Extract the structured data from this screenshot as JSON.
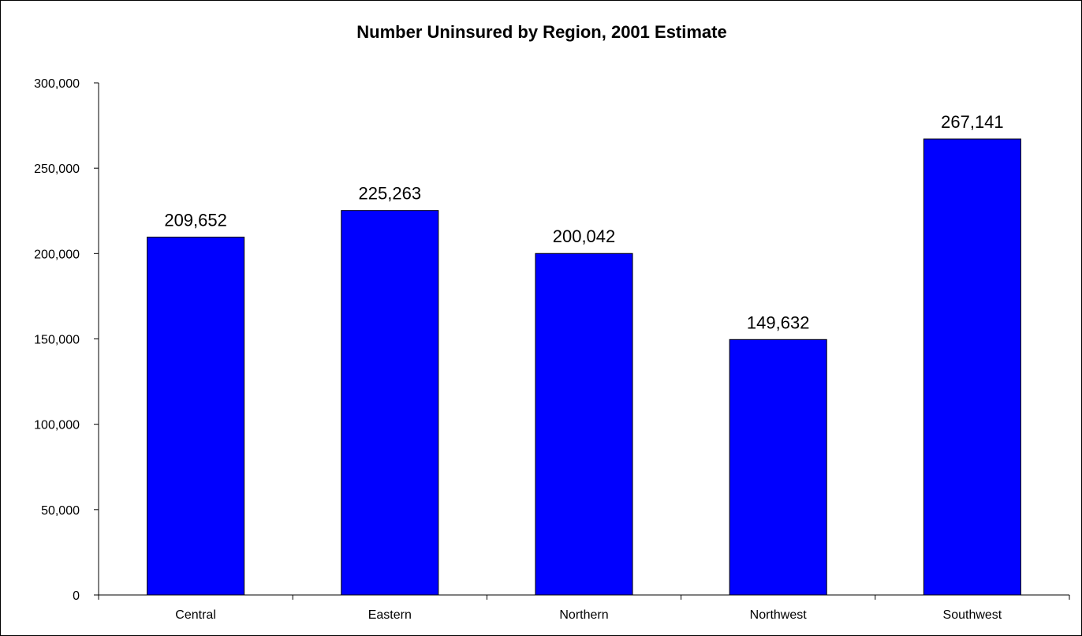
{
  "chart_data": {
    "type": "bar",
    "title": "Number Uninsured by Region, 2001 Estimate",
    "categories": [
      "Central",
      "Eastern",
      "Northern",
      "Northwest",
      "Southwest"
    ],
    "values": [
      209652,
      225263,
      200042,
      149632,
      267141
    ],
    "value_labels": [
      "209,652",
      "225,263",
      "200,042",
      "149,632",
      "267,141"
    ],
    "ylim": [
      0,
      300000
    ],
    "yticks": [
      0,
      50000,
      100000,
      150000,
      200000,
      250000,
      300000
    ],
    "ytick_labels": [
      "0",
      "50,000",
      "100,000",
      "150,000",
      "200,000",
      "250,000",
      "300,000"
    ],
    "xlabel": "",
    "ylabel": "",
    "grid": false,
    "bar_color": "#0000FF"
  }
}
